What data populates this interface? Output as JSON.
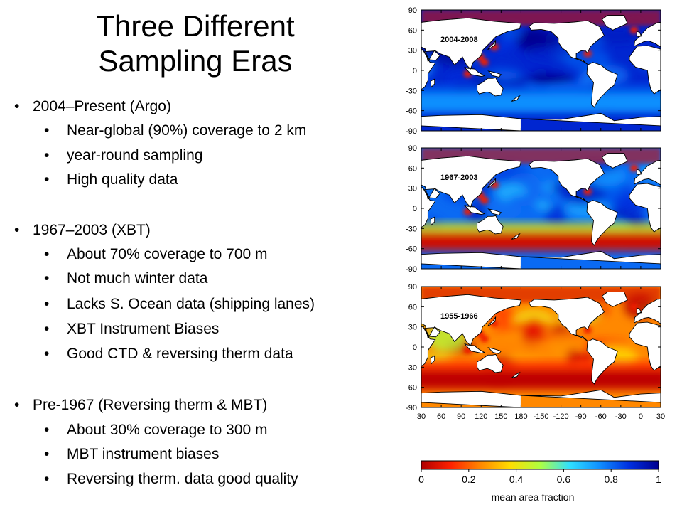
{
  "title": {
    "line1": "Three Different",
    "line2": "Sampling Eras"
  },
  "bullet_char": "•",
  "sections": [
    {
      "heading": "2004–Present (Argo)",
      "items": [
        "Near-global (90%) coverage to 2 km",
        "year-round sampling",
        "High quality data"
      ]
    },
    {
      "heading": "1967–2003 (XBT)",
      "items": [
        "About 70% coverage to 700 m",
        "Not much winter data",
        "Lacks S. Ocean data (shipping lanes)",
        "XBT Instrument Biases",
        "Good CTD & reversing therm data"
      ]
    },
    {
      "heading": "Pre-1967 (Reversing therm & MBT)",
      "items": [
        "About 30% coverage to 300 m",
        "MBT instrument biases",
        "Reversing therm. data good quality"
      ]
    }
  ],
  "maps": {
    "y_ticks": [
      "90",
      "60",
      "30",
      "0",
      "-30",
      "-60",
      "-90"
    ],
    "x_ticks": [
      "30",
      "60",
      "90",
      "120",
      "150",
      "180",
      "-150",
      "-120",
      "-90",
      "-60",
      "-30",
      "0",
      "30"
    ],
    "panels": [
      {
        "label": "2004-2008",
        "mean_fraction_open_ocean": 0.9,
        "southern_ocean_fraction": 0.75
      },
      {
        "label": "1967-2003",
        "mean_fraction_open_ocean": 0.8,
        "southern_ocean_fraction": 0.05
      },
      {
        "label": "1955-1966",
        "mean_fraction_open_ocean": 0.25,
        "southern_ocean_fraction": 0.02
      }
    ],
    "colorbar": {
      "ticks": [
        "0",
        "0.2",
        "0.4",
        "0.6",
        "0.8",
        "1"
      ],
      "label": "mean area fraction",
      "colors": [
        "#b00000",
        "#ff2200",
        "#ff8800",
        "#ffdd00",
        "#b0ff40",
        "#30e0ff",
        "#1090ff",
        "#0030e0",
        "#000090"
      ]
    },
    "colors": {
      "ocean_high": "#0a3ee8",
      "ocean_mid": "#2fa0ff",
      "ocean_low": "#d81e00",
      "land": "#ffffff",
      "coast": "#000000"
    }
  }
}
